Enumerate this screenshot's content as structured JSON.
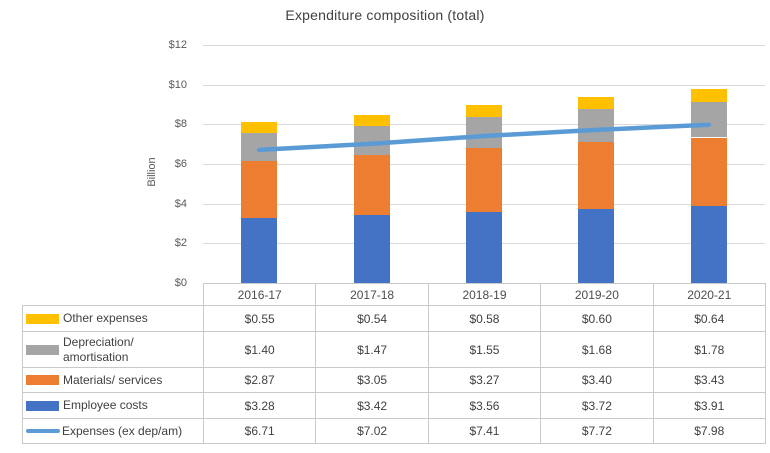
{
  "chart_data": {
    "type": "stacked-bar-with-line",
    "title": "Expenditure composition (total)",
    "xlabel": "",
    "ylabel": "Billion",
    "ylim": [
      0,
      12
    ],
    "grid": true,
    "y_tick_values": [
      0,
      2,
      4,
      6,
      8,
      10,
      12
    ],
    "y_tick_labels": [
      "$0",
      "$2",
      "$4",
      "$6",
      "$8",
      "$10",
      "$12"
    ],
    "categories": [
      "2016-17",
      "2017-18",
      "2018-19",
      "2019-20",
      "2020-21"
    ],
    "bar_series": [
      {
        "name": "Employee costs",
        "color": "#4472C4",
        "values": [
          3.28,
          3.42,
          3.56,
          3.72,
          3.91
        ]
      },
      {
        "name": "Materials/ services",
        "color": "#ED7D31",
        "values": [
          2.87,
          3.05,
          3.27,
          3.4,
          3.43
        ]
      },
      {
        "name": "Depreciation/ amortisation",
        "color": "#A5A5A5",
        "values": [
          1.4,
          1.47,
          1.55,
          1.68,
          1.78
        ]
      },
      {
        "name": "Other expenses",
        "color": "#FFC000",
        "values": [
          0.55,
          0.54,
          0.58,
          0.6,
          0.64
        ]
      }
    ],
    "line_series": [
      {
        "name": "Expenses (ex dep/am)",
        "color": "#5B9BD5",
        "values": [
          6.71,
          7.02,
          7.41,
          7.72,
          7.98
        ]
      }
    ],
    "legend_position": "data-table-left-column"
  },
  "data_table": {
    "columns": [
      "2016-17",
      "2017-18",
      "2018-19",
      "2019-20",
      "2020-21"
    ],
    "rows": [
      {
        "label": "Other expenses",
        "swatch": "bar",
        "color": "#FFC000",
        "height": "h26",
        "values": [
          "$0.55",
          "$0.54",
          "$0.58",
          "$0.60",
          "$0.64"
        ]
      },
      {
        "label": "Depreciation/ amortisation",
        "swatch": "bar",
        "color": "#A5A5A5",
        "height": "h36",
        "values": [
          "$1.40",
          "$1.47",
          "$1.55",
          "$1.68",
          "$1.78"
        ]
      },
      {
        "label": "Materials/ services",
        "swatch": "bar",
        "color": "#ED7D31",
        "height": "h25",
        "values": [
          "$2.87",
          "$3.05",
          "$3.27",
          "$3.40",
          "$3.43"
        ]
      },
      {
        "label": "Employee costs",
        "swatch": "bar",
        "color": "#4472C4",
        "height": "h26",
        "values": [
          "$3.28",
          "$3.42",
          "$3.56",
          "$3.72",
          "$3.91"
        ]
      },
      {
        "label": "Expenses (ex dep/am)",
        "swatch": "line",
        "color": "#5B9BD5",
        "height": "h25",
        "values": [
          "$6.71",
          "$7.02",
          "$7.41",
          "$7.72",
          "$7.98"
        ]
      }
    ]
  },
  "colors": {
    "employee_costs": "#4472C4",
    "materials_services": "#ED7D31",
    "depreciation_amortisation": "#A5A5A5",
    "other_expenses": "#FFC000",
    "expenses_line": "#5B9BD5",
    "gridline": "#D9D9D9",
    "table_border": "#C9C9C9",
    "title_text": "#404040",
    "axis_text": "#595959"
  }
}
